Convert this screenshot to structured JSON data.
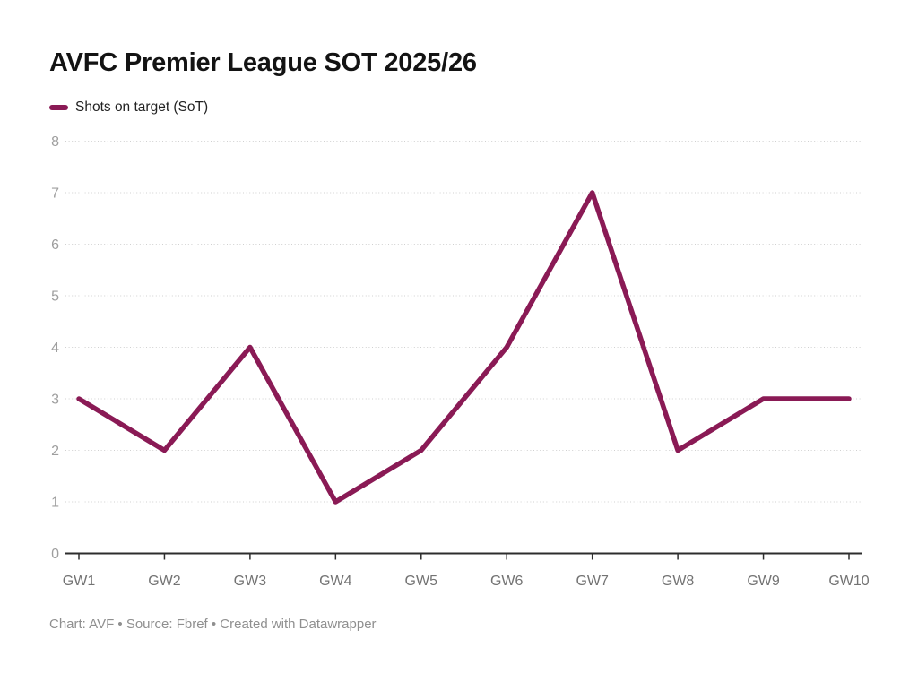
{
  "header": {
    "title": "AVFC Premier League SOT 2025/26"
  },
  "legend": {
    "label": "Shots on target (SoT)",
    "swatch_color": "#8A1A55"
  },
  "footer": {
    "text": "Chart: AVF • Source: Fbref • Created with Datawrapper"
  },
  "colors": {
    "line": "#8A1A55",
    "grid": "#d0d0d0",
    "axis": "#2d2d2d",
    "y_tick_label": "#9e9e9e",
    "x_tick_label": "#737373",
    "background": "#ffffff"
  },
  "chart_data": {
    "type": "line",
    "title": "AVFC Premier League SOT 2025/26",
    "categories": [
      "GW1",
      "GW2",
      "GW3",
      "GW4",
      "GW5",
      "GW6",
      "GW7",
      "GW8",
      "GW9",
      "GW10"
    ],
    "series": [
      {
        "name": "Shots on target (SoT)",
        "values": [
          3,
          2,
          4,
          1,
          2,
          4,
          7,
          2,
          3,
          3
        ],
        "color": "#8A1A55"
      }
    ],
    "xlabel": "",
    "ylabel": "",
    "ylim": [
      0,
      8
    ],
    "yticks": [
      0,
      1,
      2,
      3,
      4,
      5,
      6,
      7,
      8
    ],
    "grid": true,
    "gridline_style": "dotted",
    "legend_position": "top-left",
    "line_width": 5.5
  }
}
